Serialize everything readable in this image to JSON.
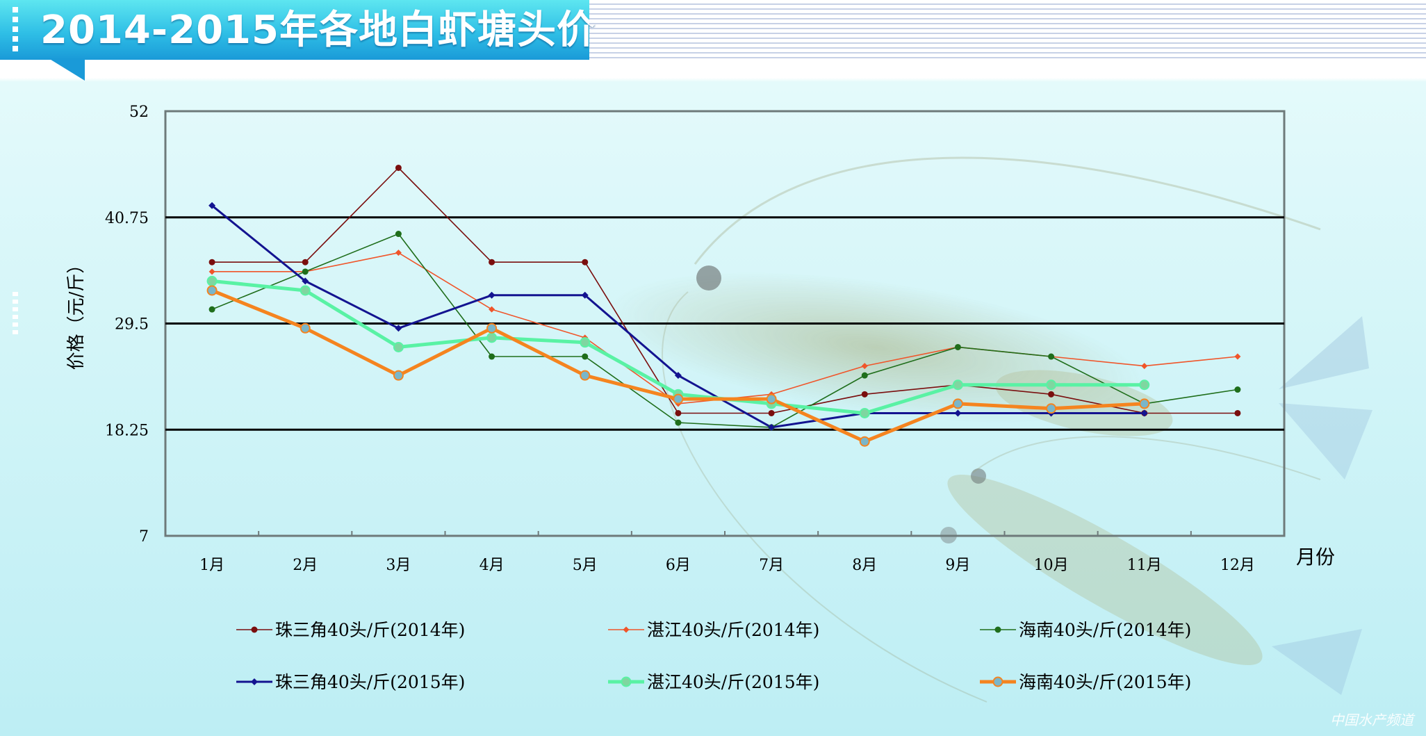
{
  "title": "2014-2015年各地白虾塘头价",
  "watermark": "中国水产频道",
  "chart_data": {
    "type": "line",
    "title": "2014-2015年各地白虾塘头价",
    "xlabel": "月份",
    "ylabel": "价格（元/斤）",
    "categories": [
      "1月",
      "2月",
      "3月",
      "4月",
      "5月",
      "6月",
      "7月",
      "8月",
      "9月",
      "10月",
      "11月",
      "12月"
    ],
    "yticks": [
      "7",
      "18.25",
      "29.5",
      "40.75",
      "52"
    ],
    "ylim": [
      7,
      52
    ],
    "grid": "horizontal major lines at 18.25, 29.5, 40.75",
    "legend_position": "bottom",
    "series": [
      {
        "name": "珠三角40头/斤(2014年)",
        "color": "#7a0e0e",
        "marker": "circle",
        "width": 1.6,
        "values": [
          36,
          36,
          46,
          36,
          36,
          20,
          20,
          22,
          23,
          22,
          20,
          20
        ]
      },
      {
        "name": "湛江40头/斤(2014年)",
        "color": "#f0552a",
        "marker": "diamond",
        "width": 1.6,
        "values": [
          35,
          35,
          37,
          31,
          28,
          21,
          22,
          25,
          27,
          26,
          25,
          26
        ]
      },
      {
        "name": "海南40头/斤(2014年)",
        "color": "#1f6e1b",
        "marker": "circle",
        "width": 1.6,
        "values": [
          31,
          35,
          39,
          26,
          26,
          19,
          18.5,
          24,
          27,
          26,
          21,
          22.5
        ]
      },
      {
        "name": "珠三角40头/斤(2015年)",
        "color": "#131390",
        "marker": "diamond",
        "width": 3,
        "values": [
          42,
          34,
          29,
          32.5,
          32.5,
          24,
          18.5,
          20,
          20,
          20,
          20,
          null
        ]
      },
      {
        "name": "湛江40头/斤(2015年)",
        "color": "#59f2a4",
        "marker": "circle-light",
        "width": 5,
        "values": [
          34,
          33,
          27,
          28,
          27.5,
          22,
          21,
          20,
          23,
          23,
          23,
          null
        ]
      },
      {
        "name": "海南40头/斤(2015年)",
        "color": "#f5841f",
        "marker": "circle-blue",
        "width": 5,
        "values": [
          33,
          29,
          24,
          29,
          24,
          21.5,
          21.5,
          17,
          21,
          20.5,
          21,
          null
        ]
      }
    ]
  }
}
